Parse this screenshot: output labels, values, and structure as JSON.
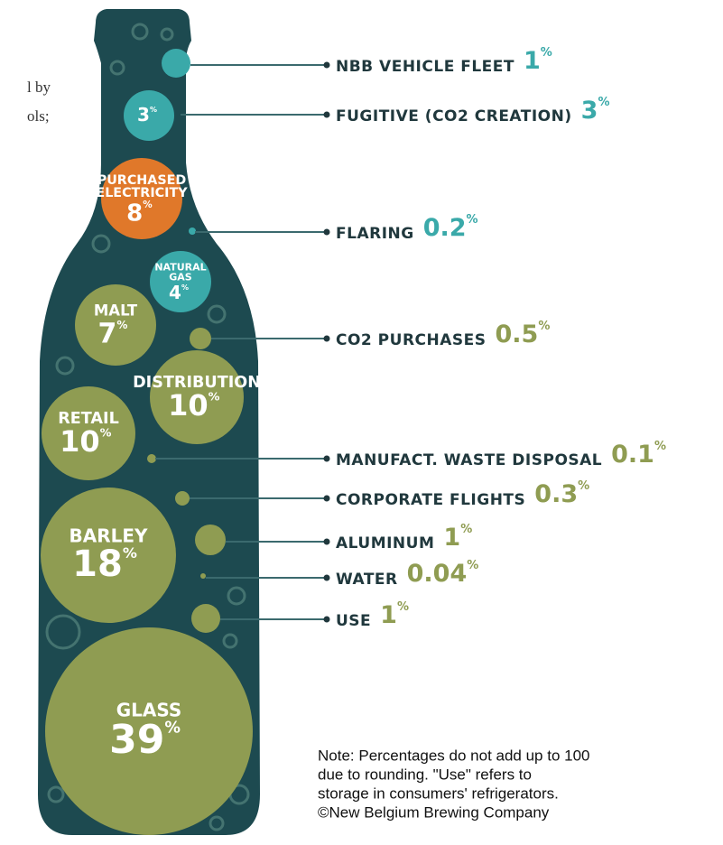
{
  "cropped_text": [
    "l by",
    "ols;"
  ],
  "bubbles": [
    {
      "number": "3",
      "unit": "%"
    },
    {
      "label_lines": [
        "PURCHASED",
        "ELECTRICITY"
      ],
      "number": "8",
      "unit": "%"
    },
    {
      "label_lines": [
        "NATURAL",
        "GAS"
      ],
      "number": "4",
      "unit": "%"
    },
    {
      "label_lines": [
        "MALT"
      ],
      "number": "7",
      "unit": "%"
    },
    {
      "label_lines": [
        "DISTRIBUTION"
      ],
      "number": "10",
      "unit": "%"
    },
    {
      "label_lines": [
        "RETAIL"
      ],
      "number": "10",
      "unit": "%"
    },
    {
      "label_lines": [
        "BARLEY"
      ],
      "number": "18",
      "unit": "%"
    },
    {
      "label_lines": [
        "GLASS"
      ],
      "number": "39",
      "unit": "%"
    }
  ],
  "callouts": [
    {
      "label": "NBB VEHICLE FLEET",
      "number": "1",
      "unit": "%"
    },
    {
      "label": "FUGITIVE (CO2 CREATION)",
      "number": "3",
      "unit": "%"
    },
    {
      "label": "FLARING",
      "number": "0.2",
      "unit": "%"
    },
    {
      "label": "CO2 PURCHASES",
      "number": "0.5",
      "unit": "%"
    },
    {
      "label": "MANUFACT. WASTE DISPOSAL",
      "number": "0.1",
      "unit": "%"
    },
    {
      "label": "CORPORATE FLIGHTS",
      "number": "0.3",
      "unit": "%"
    },
    {
      "label": "ALUMINUM",
      "number": "1",
      "unit": "%"
    },
    {
      "label": "WATER",
      "number": "0.04",
      "unit": "%"
    },
    {
      "label": "USE",
      "number": "1",
      "unit": "%"
    }
  ],
  "note": [
    "Note: Percentages do not add up to 100",
    "due to rounding. \"Use\" refers to",
    "storage in consumers' refrigerators.",
    "©New Belgium Brewing Company"
  ]
}
